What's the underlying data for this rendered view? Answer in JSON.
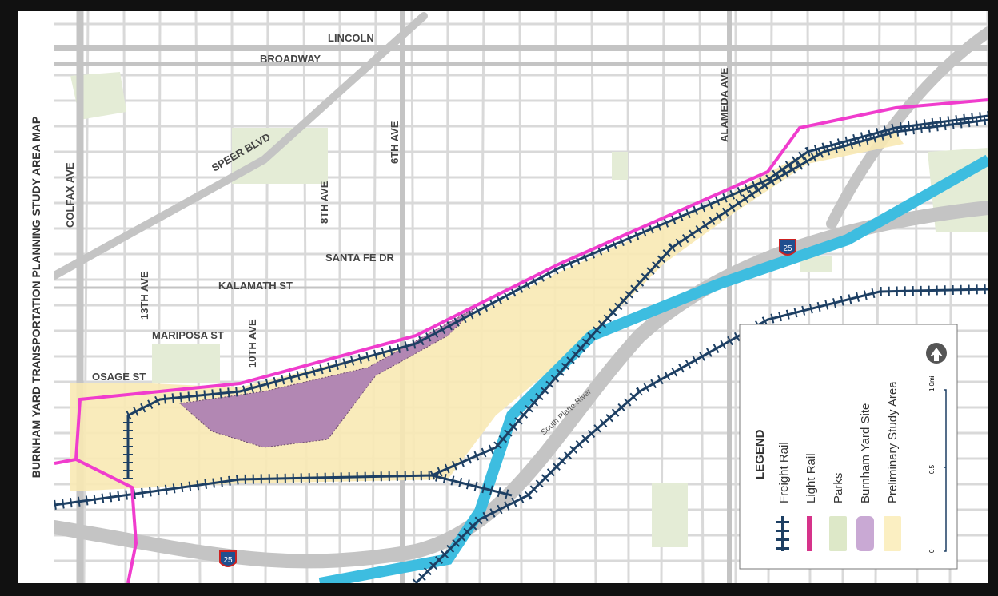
{
  "title": "BURNHAM YARD TRANSPORTATION PLANNING STUDY AREA MAP",
  "streets": {
    "lincoln": "LINCOLN",
    "broadway": "BROADWAY",
    "speer": "SPEER BLVD",
    "colfax": "COLFAX AVE",
    "sixth": "6TH AVE",
    "eighth": "8TH AVE",
    "thirteenth": "13TH AVE",
    "tenth": "10TH AVE",
    "santafe": "SANTA FE DR",
    "kalamath": "KALAMATH  ST",
    "mariposa": "MARIPOSA ST",
    "osage": "OSAGE ST",
    "alameda": "ALAMEDA AVE",
    "river": "South Platte River"
  },
  "highway_shield": "25",
  "legend": {
    "title": "LEGEND",
    "items": [
      {
        "label": "Freight Rail",
        "color": "#1d3f63"
      },
      {
        "label": "Light Rail",
        "color": "#d6338a"
      },
      {
        "label": "Parks",
        "color": "#dde8c8"
      },
      {
        "label": "Burnham Yard Site",
        "color": "#c9a9d4"
      },
      {
        "label": "Preliminary Study Area",
        "color": "#fbefc2"
      }
    ],
    "scale": {
      "ticks": [
        "0",
        "0.5",
        "1.0mi"
      ]
    },
    "north_icon": "north-arrow-icon"
  },
  "colors": {
    "road": "#c4c4c4",
    "street": "#d6d6d6",
    "river": "#3dbde0",
    "study": "#f8e9b4",
    "site": "#b287b3",
    "rail": "#1d3f63",
    "lightrail": "#f03ccd",
    "park": "#e4ecd6"
  }
}
